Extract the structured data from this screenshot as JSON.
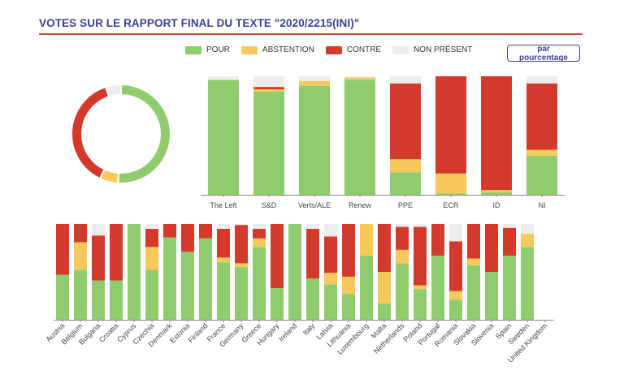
{
  "title": "VOTES SUR LE RAPPORT FINAL DU TEXTE \"2020/2215(INI)\"",
  "percent_button": "par pourcentage",
  "legend": [
    {
      "label": "POUR",
      "color": "#8fcc6e"
    },
    {
      "label": "ABSTENTION",
      "color": "#f7c85a"
    },
    {
      "label": "CONTRE",
      "color": "#d33a2c"
    },
    {
      "label": "NON PRÉSENT",
      "color": "#ececec"
    }
  ],
  "chart_data": [
    {
      "type": "donut",
      "series": [
        {
          "name": "POUR",
          "value": 0.51
        },
        {
          "name": "ABSTENTION",
          "value": 0.06
        },
        {
          "name": "CONTRE",
          "value": 0.38
        },
        {
          "name": "NON PRÉSENT",
          "value": 0.05
        }
      ]
    },
    {
      "type": "bar",
      "stacked": true,
      "categories": [
        "The Left",
        "S&D",
        "Verts/ALE",
        "Renew",
        "PPE",
        "ECR",
        "ID",
        "NI"
      ],
      "series": [
        {
          "name": "POUR",
          "values": [
            0.97,
            0.87,
            0.92,
            0.97,
            0.19,
            0.01,
            0.02,
            0.33
          ]
        },
        {
          "name": "ABSTENTION",
          "values": [
            0.0,
            0.02,
            0.04,
            0.02,
            0.11,
            0.17,
            0.02,
            0.05
          ]
        },
        {
          "name": "CONTRE",
          "values": [
            0.0,
            0.02,
            0.0,
            0.0,
            0.64,
            0.82,
            0.96,
            0.56
          ]
        },
        {
          "name": "NON PRÉSENT",
          "values": [
            0.03,
            0.09,
            0.04,
            0.01,
            0.06,
            0.0,
            0.0,
            0.06
          ]
        }
      ]
    },
    {
      "type": "bar",
      "stacked": true,
      "categories": [
        "Austria",
        "Belgium",
        "Bulgaria",
        "Croatia",
        "Cyprus",
        "Czechia",
        "Denmark",
        "Estonia",
        "Finland",
        "France",
        "Germany",
        "Greece",
        "Hungary",
        "Ireland",
        "Italy",
        "Latvia",
        "Lithuania",
        "Luxembourg",
        "Malta",
        "Netherlands",
        "Poland",
        "Portugal",
        "Romania",
        "Slovakia",
        "Slovenia",
        "Spain",
        "Sweden",
        "United Kingdom"
      ],
      "series": [
        {
          "name": "POUR",
          "values": [
            0.47,
            0.52,
            0.41,
            0.41,
            1.0,
            0.52,
            0.86,
            0.71,
            0.85,
            0.6,
            0.55,
            0.76,
            0.33,
            1.0,
            0.43,
            0.37,
            0.27,
            0.67,
            0.17,
            0.59,
            0.32,
            0.67,
            0.21,
            0.57,
            0.5,
            0.67,
            0.76,
            0.0
          ]
        },
        {
          "name": "ABSTENTION",
          "values": [
            0.0,
            0.29,
            0.0,
            0.0,
            0.0,
            0.24,
            0.0,
            0.0,
            0.0,
            0.05,
            0.04,
            0.09,
            0.0,
            0.0,
            0.0,
            0.12,
            0.18,
            0.33,
            0.33,
            0.14,
            0.04,
            0.0,
            0.09,
            0.07,
            0.0,
            0.0,
            0.14,
            0.0
          ]
        },
        {
          "name": "CONTRE",
          "values": [
            0.53,
            0.19,
            0.47,
            0.59,
            0.0,
            0.19,
            0.14,
            0.29,
            0.15,
            0.3,
            0.4,
            0.1,
            0.67,
            0.0,
            0.52,
            0.38,
            0.55,
            0.0,
            0.5,
            0.24,
            0.61,
            0.33,
            0.52,
            0.36,
            0.5,
            0.29,
            0.0,
            0.0
          ]
        },
        {
          "name": "NON PRÉSENT",
          "values": [
            0.0,
            0.0,
            0.12,
            0.0,
            0.0,
            0.05,
            0.0,
            0.0,
            0.0,
            0.05,
            0.01,
            0.05,
            0.0,
            0.0,
            0.05,
            0.13,
            0.0,
            0.0,
            0.0,
            0.03,
            0.03,
            0.0,
            0.18,
            0.0,
            0.0,
            0.04,
            0.1,
            0.0
          ]
        }
      ]
    }
  ]
}
